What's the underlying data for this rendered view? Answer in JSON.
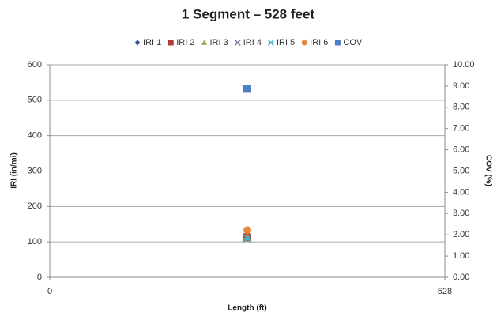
{
  "chart_data": {
    "type": "scatter",
    "title": "1 Segment – 528 feet",
    "x_label": "Length (ft)",
    "y_label": "IRI (in/mi)",
    "y2_label": "COV (%)",
    "xlim": [
      0,
      528
    ],
    "xticks": [
      0,
      528
    ],
    "ylim": [
      0,
      600
    ],
    "yticks": [
      0,
      100,
      200,
      300,
      400,
      500,
      600
    ],
    "y2lim": [
      0,
      10
    ],
    "y2ticks": [
      {
        "value": 0,
        "label": "0.00"
      },
      {
        "value": 1,
        "label": "1.00"
      },
      {
        "value": 2,
        "label": "2.00"
      },
      {
        "value": 3,
        "label": "3.00"
      },
      {
        "value": 4,
        "label": "4.00"
      },
      {
        "value": 5,
        "label": "5.00"
      },
      {
        "value": 6,
        "label": "6.00"
      },
      {
        "value": 7,
        "label": "7.00"
      },
      {
        "value": 8,
        "label": "8.00"
      },
      {
        "value": 9,
        "label": "9.00"
      },
      {
        "value": 10,
        "label": "10.00"
      }
    ],
    "grid": true,
    "legend": "top",
    "series": [
      {
        "name": "IRI 1",
        "color": "#2f4f8f",
        "marker": "diamond",
        "x": [
          264
        ],
        "values": [
          112
        ]
      },
      {
        "name": "IRI 2",
        "color": "#b23b3b",
        "marker": "square",
        "x": [
          264
        ],
        "values": [
          113
        ]
      },
      {
        "name": "IRI 3",
        "color": "#8aa83e",
        "marker": "triangle",
        "x": [
          264
        ],
        "values": [
          112
        ]
      },
      {
        "name": "IRI 4",
        "color": "#7b6a9c",
        "marker": "x",
        "x": [
          264
        ],
        "values": [
          110
        ]
      },
      {
        "name": "IRI 5",
        "color": "#3fb1c9",
        "marker": "star",
        "x": [
          264
        ],
        "values": [
          110
        ]
      },
      {
        "name": "IRI 6",
        "color": "#e8873a",
        "marker": "circle",
        "x": [
          264
        ],
        "values": [
          133
        ]
      },
      {
        "name": "COV",
        "color": "#4f7fc6",
        "marker": "square",
        "axis": "y2",
        "x": [
          264
        ],
        "values": [
          8.87
        ]
      }
    ]
  }
}
